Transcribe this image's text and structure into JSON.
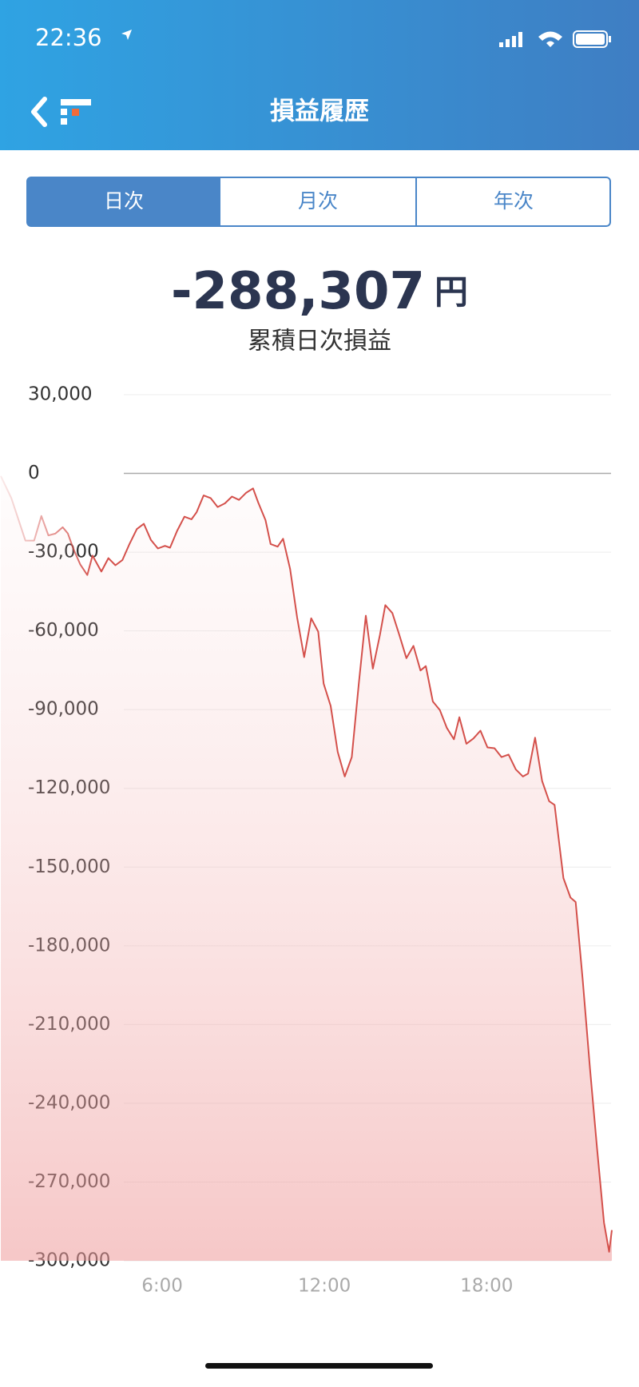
{
  "status_bar": {
    "time": "22:36"
  },
  "header": {
    "title": "損益履歴"
  },
  "tabs": [
    "日次",
    "月次",
    "年次"
  ],
  "summary": {
    "value": "-288,307",
    "unit": "円",
    "label": "累積日次損益"
  },
  "chart_data": {
    "type": "line",
    "x": [
      0.03,
      0.42,
      0.94,
      1.26,
      1.53,
      1.79,
      2.05,
      2.32,
      2.51,
      2.71,
      2.97,
      3.23,
      3.42,
      3.75,
      4.01,
      4.27,
      4.53,
      4.79,
      5.06,
      5.32,
      5.58,
      5.84,
      6.1,
      6.29,
      6.55,
      6.82,
      7.08,
      7.27,
      7.53,
      7.79,
      8.05,
      8.32,
      8.58,
      8.84,
      9.1,
      9.36,
      9.55,
      9.82,
      10.01,
      10.27,
      10.47,
      10.73,
      10.99,
      11.25,
      11.51,
      11.77,
      11.97,
      12.23,
      12.49,
      12.75,
      13.01,
      13.27,
      13.53,
      13.79,
      14.05,
      14.25,
      14.51,
      14.77,
      15.03,
      15.29,
      15.55,
      15.75,
      16.01,
      16.27,
      16.53,
      16.79,
      16.99,
      17.25,
      17.51,
      17.77,
      18.03,
      18.29,
      18.55,
      18.81,
      19.08,
      19.34,
      19.53,
      19.79,
      20.05,
      20.31,
      20.51,
      20.84,
      21.1,
      21.29,
      21.55,
      21.82,
      22.08,
      22.34,
      22.53,
      22.63
    ],
    "series": [
      {
        "color": "#d4504b",
        "values": [
          -1000,
          -9400,
          -25600,
          -25600,
          -16200,
          -23600,
          -22900,
          -20500,
          -22900,
          -28600,
          -34700,
          -38700,
          -31300,
          -37400,
          -32300,
          -35000,
          -33000,
          -26900,
          -21200,
          -19200,
          -25300,
          -28600,
          -27600,
          -28300,
          -21900,
          -16500,
          -17500,
          -14800,
          -8400,
          -9400,
          -12800,
          -11400,
          -8800,
          -10100,
          -7400,
          -5700,
          -11100,
          -17800,
          -26900,
          -27900,
          -24900,
          -36400,
          -54900,
          -70000,
          -55200,
          -60300,
          -80100,
          -88600,
          -106100,
          -115500,
          -108100,
          -80100,
          -54200,
          -74400,
          -61600,
          -50200,
          -53200,
          -61600,
          -70400,
          -65700,
          -75100,
          -73400,
          -86900,
          -90200,
          -97000,
          -101300,
          -92900,
          -103000,
          -101000,
          -98000,
          -104400,
          -104700,
          -108100,
          -107100,
          -112800,
          -115500,
          -114400,
          -100700,
          -117200,
          -124900,
          -126300,
          -154200,
          -161600,
          -163300,
          -192900,
          -226600,
          -256900,
          -285500,
          -296600,
          -288307
        ]
      }
    ],
    "xlim": [
      0,
      22.6
    ],
    "xticks": [
      {
        "value": 6,
        "label": "6:00"
      },
      {
        "value": 12,
        "label": "12:00"
      },
      {
        "value": 18,
        "label": "18:00"
      }
    ],
    "ylim": [
      -300000,
      30000
    ],
    "yticks": [
      {
        "value": 30000,
        "label": "30,000"
      },
      0,
      {
        "value": -30000,
        "label": "-30,000"
      },
      {
        "value": -60000,
        "label": "-60,000"
      },
      {
        "value": -90000,
        "label": "-90,000"
      },
      {
        "value": -120000,
        "label": "-120,000"
      },
      {
        "value": -150000,
        "label": "-150,000"
      },
      {
        "value": -180000,
        "label": "-180,000"
      },
      {
        "value": -210000,
        "label": "-210,000"
      },
      {
        "value": -240000,
        "label": "-240,000"
      },
      {
        "value": -270000,
        "label": "-270,000"
      },
      {
        "value": -300000,
        "label": "-300,000"
      }
    ],
    "grid": true
  }
}
